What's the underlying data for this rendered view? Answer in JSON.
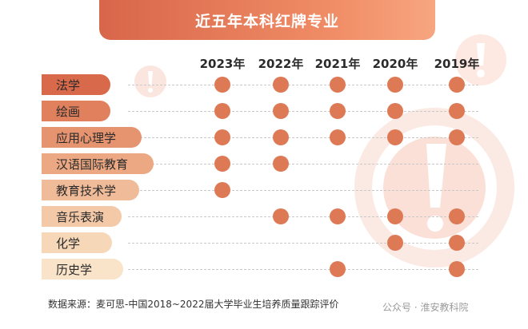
{
  "chart_data": {
    "type": "table",
    "title": "近五年本科红牌专业",
    "years": [
      "2023年",
      "2022年",
      "2021年",
      "2020年",
      "2019年"
    ],
    "rows": [
      {
        "name": "法学",
        "flags": [
          1,
          1,
          1,
          1,
          1
        ]
      },
      {
        "name": "绘画",
        "flags": [
          1,
          1,
          1,
          1,
          1
        ]
      },
      {
        "name": "应用心理学",
        "flags": [
          1,
          1,
          1,
          1,
          1
        ]
      },
      {
        "name": "汉语国际教育",
        "flags": [
          1,
          1,
          0,
          0,
          0
        ]
      },
      {
        "name": "教育技术学",
        "flags": [
          1,
          0,
          0,
          0,
          0
        ]
      },
      {
        "name": "音乐表演",
        "flags": [
          0,
          1,
          1,
          1,
          1
        ]
      },
      {
        "name": "化学",
        "flags": [
          0,
          0,
          0,
          1,
          1
        ]
      },
      {
        "name": "历史学",
        "flags": [
          0,
          0,
          1,
          0,
          1
        ]
      }
    ],
    "dot_color": "#dd7a55",
    "pill_colors": [
      "#d9694b",
      "#e0805d",
      "#e69470",
      "#eba883",
      "#f0bb98",
      "#f3c9a8",
      "#f6d8b9",
      "#f9e3c9"
    ]
  },
  "source": "数据来源：麦可思-中国2018~2022届大学毕业生培养质量跟踪评价",
  "watermark": "公众号 · 淮安教科院"
}
